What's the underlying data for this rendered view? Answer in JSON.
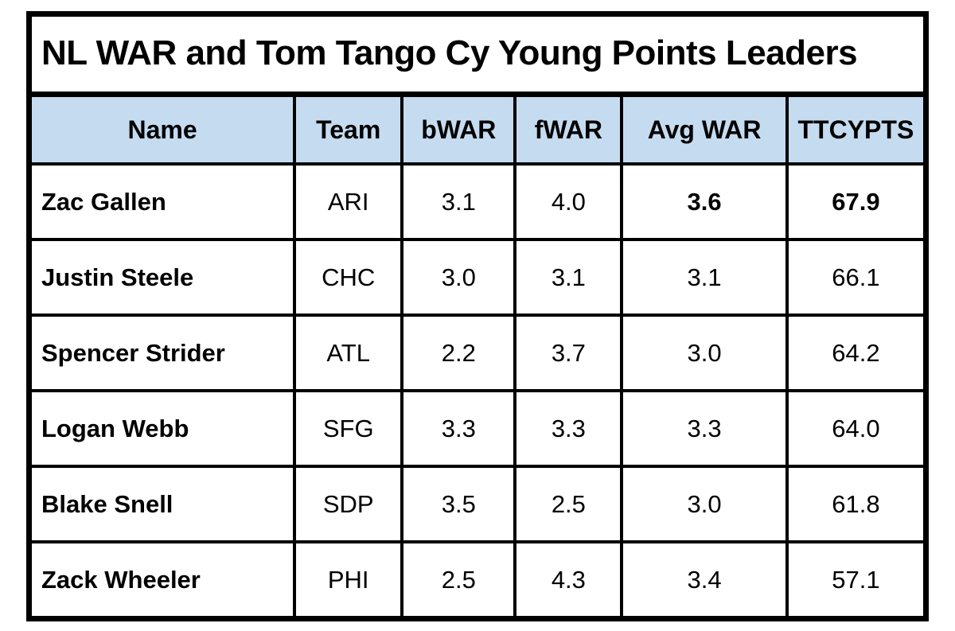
{
  "title": "NL WAR and Tom Tango Cy Young Points Leaders",
  "colors": {
    "header_bg": "#C5DCF0",
    "border": "#000000",
    "background": "#FFFFFF"
  },
  "chart_data": {
    "type": "table",
    "title": "NL WAR and Tom Tango Cy Young Points Leaders",
    "columns": [
      "Name",
      "Team",
      "bWAR",
      "fWAR",
      "Avg WAR",
      "TTCYPTS"
    ],
    "rows": [
      {
        "name": "Zac Gallen",
        "team": "ARI",
        "bwar": "3.1",
        "fwar": "4.0",
        "avg_war": "3.6",
        "ttcypts": "67.9",
        "emphasis": true
      },
      {
        "name": "Justin Steele",
        "team": "CHC",
        "bwar": "3.0",
        "fwar": "3.1",
        "avg_war": "3.1",
        "ttcypts": "66.1",
        "emphasis": false
      },
      {
        "name": "Spencer Strider",
        "team": "ATL",
        "bwar": "2.2",
        "fwar": "3.7",
        "avg_war": "3.0",
        "ttcypts": "64.2",
        "emphasis": false
      },
      {
        "name": "Logan Webb",
        "team": "SFG",
        "bwar": "3.3",
        "fwar": "3.3",
        "avg_war": "3.3",
        "ttcypts": "64.0",
        "emphasis": false
      },
      {
        "name": "Blake Snell",
        "team": "SDP",
        "bwar": "3.5",
        "fwar": "2.5",
        "avg_war": "3.0",
        "ttcypts": "61.8",
        "emphasis": false
      },
      {
        "name": "Zack Wheeler",
        "team": "PHI",
        "bwar": "2.5",
        "fwar": "4.3",
        "avg_war": "3.4",
        "ttcypts": "57.1",
        "emphasis": false
      }
    ]
  }
}
